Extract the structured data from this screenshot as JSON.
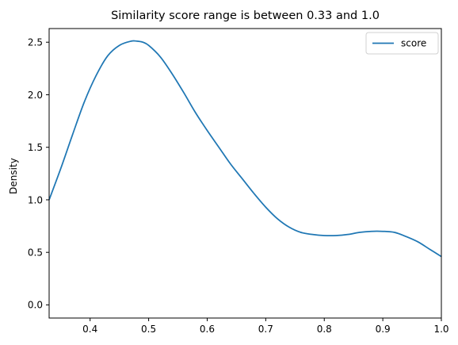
{
  "chart_data": {
    "type": "line",
    "title": "Similarity score range is between 0.33 and 1.0",
    "xlabel": "",
    "ylabel": "Density",
    "xlim": [
      0.33,
      1.0
    ],
    "ylim": [
      -0.125,
      2.63
    ],
    "xticks": [
      {
        "value": 0.4,
        "label": "0.4"
      },
      {
        "value": 0.5,
        "label": "0.5"
      },
      {
        "value": 0.6,
        "label": "0.6"
      },
      {
        "value": 0.7,
        "label": "0.7"
      },
      {
        "value": 0.8,
        "label": "0.8"
      },
      {
        "value": 0.9,
        "label": "0.9"
      },
      {
        "value": 1.0,
        "label": "1.0"
      }
    ],
    "yticks": [
      {
        "value": 0.0,
        "label": "0.0"
      },
      {
        "value": 0.5,
        "label": "0.5"
      },
      {
        "value": 1.0,
        "label": "1.0"
      },
      {
        "value": 1.5,
        "label": "1.5"
      },
      {
        "value": 2.0,
        "label": "2.0"
      },
      {
        "value": 2.5,
        "label": "2.5"
      }
    ],
    "grid": false,
    "legend": "top-right",
    "series": [
      {
        "name": "score",
        "color": "#1f77b4",
        "x": [
          0.33,
          0.35,
          0.37,
          0.39,
          0.41,
          0.43,
          0.45,
          0.47,
          0.48,
          0.49,
          0.5,
          0.52,
          0.54,
          0.56,
          0.58,
          0.6,
          0.62,
          0.64,
          0.66,
          0.68,
          0.7,
          0.72,
          0.74,
          0.76,
          0.78,
          0.8,
          0.82,
          0.84,
          0.86,
          0.88,
          0.9,
          0.92,
          0.94,
          0.96,
          0.98,
          1.0
        ],
        "y": [
          1.0,
          1.3,
          1.62,
          1.93,
          2.18,
          2.37,
          2.47,
          2.51,
          2.51,
          2.5,
          2.47,
          2.36,
          2.2,
          2.02,
          1.83,
          1.66,
          1.5,
          1.34,
          1.2,
          1.06,
          0.93,
          0.82,
          0.74,
          0.69,
          0.67,
          0.66,
          0.66,
          0.67,
          0.69,
          0.7,
          0.7,
          0.69,
          0.65,
          0.6,
          0.53,
          0.46
        ]
      }
    ]
  }
}
